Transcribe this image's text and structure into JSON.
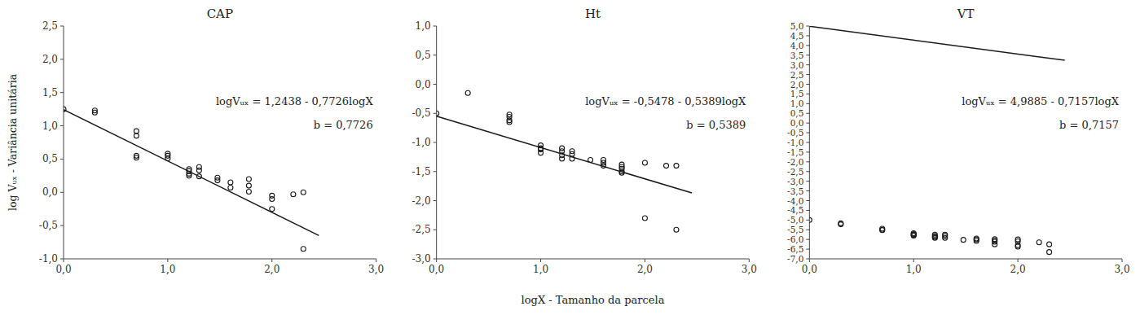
{
  "chart_data": [
    {
      "type": "scatter",
      "title": "CAP",
      "y_label": "log Vᵤₓ - Variância unitária",
      "annotations": [
        "logVᵤₓ = 1,2438 - 0,7726logX",
        "b = 0,7726"
      ],
      "grid": false,
      "xlim": [
        0.0,
        3.0
      ],
      "xticks": [
        {
          "value": 0.0,
          "label": "0,0"
        },
        {
          "value": 1.0,
          "label": "1,0"
        },
        {
          "value": 2.0,
          "label": "2,0"
        },
        {
          "value": 3.0,
          "label": "3,0"
        }
      ],
      "ylim": [
        -1.0,
        2.5
      ],
      "yticks": [
        {
          "value": -1.0,
          "label": "-1,0"
        },
        {
          "value": -0.5,
          "label": "-0,5"
        },
        {
          "value": 0.0,
          "label": "0,0"
        },
        {
          "value": 0.5,
          "label": "0,5"
        },
        {
          "value": 1.0,
          "label": "1,0"
        },
        {
          "value": 1.5,
          "label": "1,5"
        },
        {
          "value": 2.0,
          "label": "2,0"
        },
        {
          "value": 2.5,
          "label": "2,5"
        }
      ],
      "series": [
        {
          "type": "scatter",
          "marker": "circle",
          "color": "#1a1a1a",
          "x": [
            0.0,
            0.3,
            0.3,
            0.699,
            0.699,
            0.699,
            0.699,
            1.0,
            1.0,
            1.0,
            1.204,
            1.204,
            1.204,
            1.204,
            1.301,
            1.301,
            1.301,
            1.477,
            1.477,
            1.602,
            1.602,
            1.778,
            1.778,
            1.778,
            2.0,
            2.0,
            2.0,
            2.204,
            2.301,
            2.301
          ],
          "values": [
            1.25,
            1.23,
            1.2,
            0.92,
            0.85,
            0.55,
            0.52,
            0.58,
            0.55,
            0.51,
            0.35,
            0.32,
            0.28,
            0.25,
            0.38,
            0.33,
            0.24,
            0.22,
            0.18,
            0.15,
            0.07,
            0.2,
            0.1,
            0.01,
            -0.05,
            -0.1,
            -0.25,
            -0.03,
            0.0,
            -0.85
          ]
        },
        {
          "type": "line",
          "line_style": "solid",
          "color": "#1a1a1a",
          "x": [
            0.0,
            2.45
          ],
          "values": [
            1.2438,
            -0.64907
          ]
        }
      ]
    },
    {
      "type": "scatter",
      "title": "Ht",
      "x_label": "logX - Tamanho da parcela",
      "annotations": [
        "logVᵤₓ = -0,5478 - 0,5389logX",
        "b = 0,5389"
      ],
      "grid": false,
      "xlim": [
        0.0,
        3.0
      ],
      "xticks": [
        {
          "value": 0.0,
          "label": "0,0"
        },
        {
          "value": 1.0,
          "label": "1,0"
        },
        {
          "value": 2.0,
          "label": "2,0"
        },
        {
          "value": 3.0,
          "label": "3,0"
        }
      ],
      "ylim": [
        -3.0,
        1.0
      ],
      "yticks": [
        {
          "value": -3.0,
          "label": "-3,0"
        },
        {
          "value": -2.5,
          "label": "-2,5"
        },
        {
          "value": -2.0,
          "label": "-2,0"
        },
        {
          "value": -1.5,
          "label": "-1,5"
        },
        {
          "value": -1.0,
          "label": "-1,0"
        },
        {
          "value": -0.5,
          "label": "-0,5"
        },
        {
          "value": 0.0,
          "label": "0,0"
        },
        {
          "value": 0.5,
          "label": "0,5"
        },
        {
          "value": 1.0,
          "label": "1,0"
        }
      ],
      "series": [
        {
          "type": "scatter",
          "marker": "circle",
          "color": "#1a1a1a",
          "x": [
            0.0,
            0.301,
            0.699,
            0.699,
            0.699,
            0.699,
            1.0,
            1.0,
            1.0,
            1.0,
            1.204,
            1.204,
            1.204,
            1.204,
            1.301,
            1.301,
            1.301,
            1.477,
            1.602,
            1.602,
            1.602,
            1.778,
            1.778,
            1.778,
            1.778,
            1.778,
            2.0,
            2.0,
            2.204,
            2.301,
            2.301
          ],
          "values": [
            -0.5,
            -0.15,
            -0.52,
            -0.56,
            -0.62,
            -0.65,
            -1.05,
            -1.1,
            -1.12,
            -1.18,
            -1.1,
            -1.15,
            -1.22,
            -1.28,
            -1.15,
            -1.2,
            -1.28,
            -1.3,
            -1.3,
            -1.35,
            -1.4,
            -1.45,
            -1.5,
            -1.52,
            -1.42,
            -1.38,
            -2.3,
            -1.35,
            -1.4,
            -2.5,
            -1.4
          ]
        },
        {
          "type": "line",
          "line_style": "solid",
          "color": "#1a1a1a",
          "x": [
            0.0,
            2.45
          ],
          "values": [
            -0.5478,
            -1.868105
          ]
        }
      ]
    },
    {
      "type": "scatter",
      "title": "VT",
      "annotations": [
        "logVᵤₓ = 4,9885 - 0,7157logX",
        "b = 0,7157"
      ],
      "grid": false,
      "xlim": [
        0.0,
        3.0
      ],
      "xticks": [
        {
          "value": 0.0,
          "label": "0,0"
        },
        {
          "value": 1.0,
          "label": "1,0"
        },
        {
          "value": 2.0,
          "label": "2,0"
        },
        {
          "value": 3.0,
          "label": "3,0"
        }
      ],
      "ylim": [
        -7.0,
        5.0
      ],
      "yticks": [
        {
          "value": -7.0,
          "label": "-7,0"
        },
        {
          "value": -6.5,
          "label": "-6,5"
        },
        {
          "value": -6.0,
          "label": "-6,0"
        },
        {
          "value": -5.5,
          "label": "-5,5"
        },
        {
          "value": -5.0,
          "label": "-5,0"
        },
        {
          "value": -4.5,
          "label": "-4,5"
        },
        {
          "value": -4.0,
          "label": "-4,0"
        },
        {
          "value": -3.5,
          "label": "-3,5"
        },
        {
          "value": -3.0,
          "label": "-3,0"
        },
        {
          "value": -2.5,
          "label": "-2,5"
        },
        {
          "value": -2.0,
          "label": "-2,0"
        },
        {
          "value": -1.5,
          "label": "-1,5"
        },
        {
          "value": -1.0,
          "label": "-1,0"
        },
        {
          "value": -0.5,
          "label": "-0,5"
        },
        {
          "value": 0.0,
          "label": "0,0"
        },
        {
          "value": 0.5,
          "label": "0,5"
        },
        {
          "value": 1.0,
          "label": "1,0"
        },
        {
          "value": 1.5,
          "label": "1,5"
        },
        {
          "value": 2.0,
          "label": "2,0"
        },
        {
          "value": 2.5,
          "label": "2,5"
        },
        {
          "value": 3.0,
          "label": "3,0"
        },
        {
          "value": 3.5,
          "label": "3,5"
        },
        {
          "value": 4.0,
          "label": "4,0"
        },
        {
          "value": 4.5,
          "label": "4,5"
        },
        {
          "value": 5.0,
          "label": "5,0"
        }
      ],
      "series": [
        {
          "type": "scatter",
          "marker": "circle",
          "color": "#1a1a1a",
          "x": [
            0.0,
            0.301,
            0.301,
            0.699,
            0.699,
            0.699,
            1.0,
            1.0,
            1.0,
            1.0,
            1.0,
            1.204,
            1.204,
            1.204,
            1.204,
            1.301,
            1.301,
            1.301,
            1.477,
            1.602,
            1.602,
            1.602,
            1.778,
            1.778,
            1.778,
            1.778,
            2.0,
            2.0,
            2.0,
            2.0,
            2.204,
            2.301,
            2.301
          ],
          "values": [
            -5.0,
            -5.17,
            -5.22,
            -5.5,
            -5.52,
            -5.45,
            -5.72,
            -5.75,
            -5.77,
            -5.8,
            -5.68,
            -5.75,
            -5.82,
            -5.88,
            -5.92,
            -5.75,
            -5.82,
            -5.92,
            -6.02,
            -5.95,
            -6.0,
            -6.08,
            -5.98,
            -6.05,
            -6.12,
            -6.25,
            -6.3,
            -6.37,
            -6.1,
            -6.0,
            -6.15,
            -6.65,
            -6.25
          ]
        },
        {
          "type": "line",
          "line_style": "solid",
          "color": "#1a1a1a",
          "x": [
            0.0,
            2.45
          ],
          "values": [
            4.9885,
            3.235035
          ]
        }
      ]
    }
  ]
}
